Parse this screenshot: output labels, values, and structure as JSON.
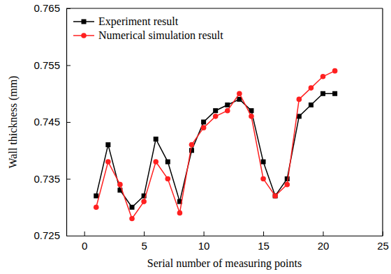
{
  "chart_data": {
    "type": "line",
    "x_label": "Serial number of measuring points",
    "y_label": "Wall thickness (mm)",
    "x": [
      1,
      2,
      3,
      4,
      5,
      6,
      7,
      8,
      9,
      10,
      11,
      12,
      13,
      14,
      15,
      16,
      17,
      18,
      19,
      20,
      21
    ],
    "series": [
      {
        "name": "Experiment result",
        "color": "#000000",
        "marker": "square",
        "line_style": "solid",
        "values": [
          0.732,
          0.741,
          0.733,
          0.73,
          0.732,
          0.742,
          0.738,
          0.731,
          0.74,
          0.745,
          0.747,
          0.748,
          0.749,
          0.747,
          0.738,
          0.732,
          0.735,
          0.746,
          0.748,
          0.75,
          0.75
        ]
      },
      {
        "name": "Numerical simulation result",
        "color": "#ff2020",
        "marker": "circle",
        "line_style": "solid",
        "values": [
          0.73,
          0.738,
          0.734,
          0.728,
          0.731,
          0.738,
          0.735,
          0.729,
          0.741,
          0.744,
          0.746,
          0.747,
          0.75,
          0.746,
          0.735,
          0.732,
          0.734,
          0.749,
          0.751,
          0.753,
          0.754
        ]
      }
    ],
    "xlim": [
      -1.5,
      25
    ],
    "xticks": [
      0,
      5,
      10,
      15,
      20,
      25
    ],
    "ylim": [
      0.725,
      0.765
    ],
    "yticks": [
      0.725,
      0.735,
      0.745,
      0.755,
      0.765
    ],
    "grid": false,
    "legend": "upper left"
  }
}
